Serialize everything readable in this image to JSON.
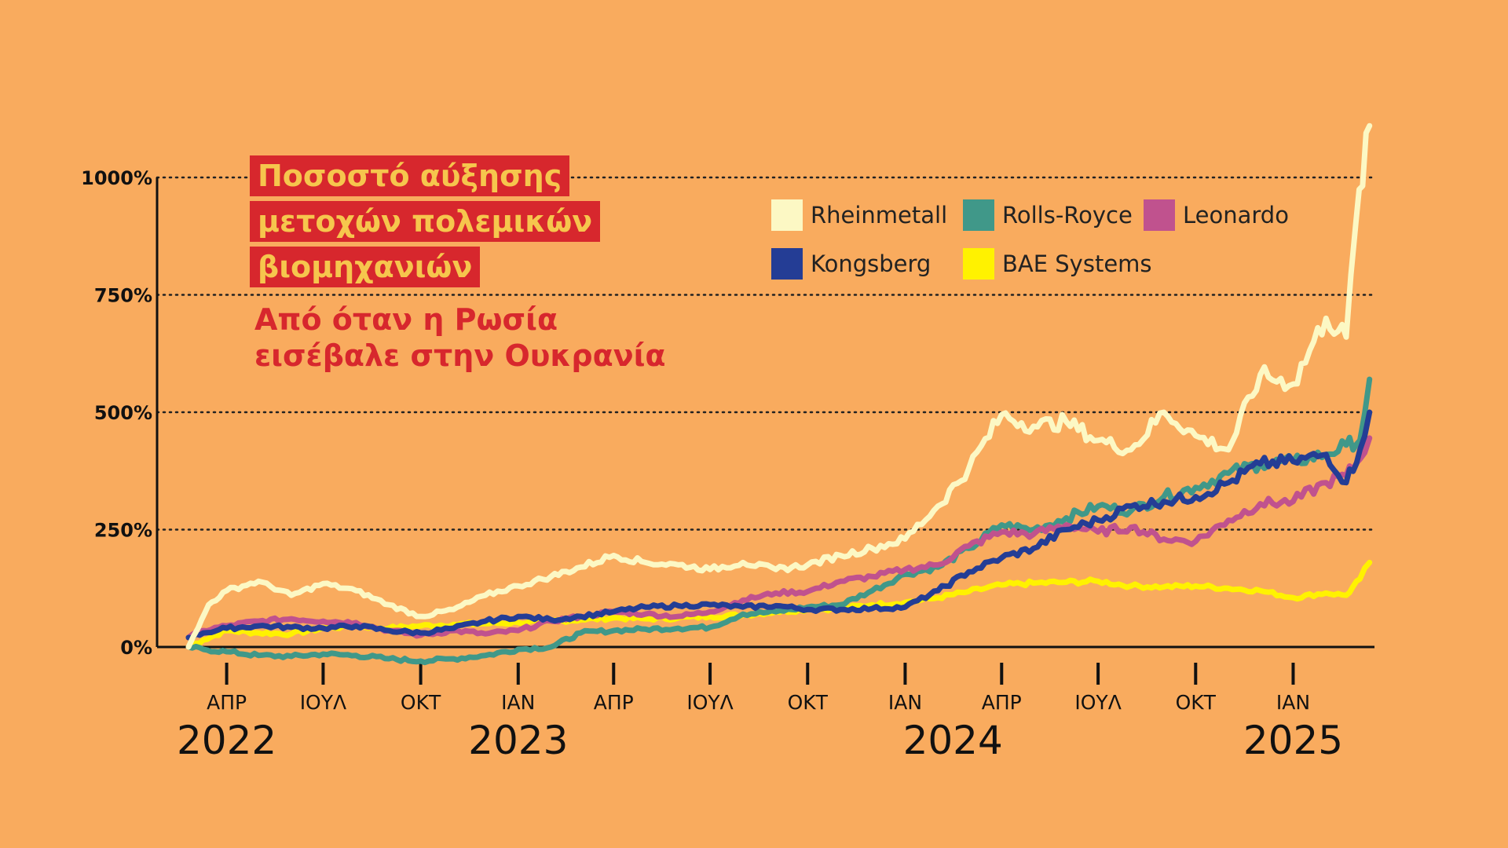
{
  "title": {
    "lines": [
      "Ποσοστό αύξησης",
      "μετοχών πολεμικών",
      "βιομηχανιών"
    ],
    "subtitle_lines": [
      "Από όταν η Ρωσία",
      "εισέβαλε στην Ουκρανία"
    ]
  },
  "colors": {
    "background": "#F9AB5E",
    "title_bg": "#D7272D",
    "title_text": "#F6C64D",
    "subtitle_text": "#D7272D"
  },
  "chart_data": {
    "type": "line",
    "x_unit": "date",
    "ylim": [
      0,
      1000
    ],
    "xlim": [
      "2022-02-24",
      "2025-03-15"
    ],
    "grid": "horizontal dotted",
    "legend_position": "top-right",
    "y_ticks": [
      {
        "value": 0,
        "label": "0%"
      },
      {
        "value": 250,
        "label": "250%"
      },
      {
        "value": 500,
        "label": "500%"
      },
      {
        "value": 750,
        "label": "750%"
      },
      {
        "value": 1000,
        "label": "1000%"
      }
    ],
    "x_ticks": [
      {
        "date": "2022-04-01",
        "label": "ΑΠΡ"
      },
      {
        "date": "2022-07-01",
        "label": "ΙΟΥΛ"
      },
      {
        "date": "2022-10-01",
        "label": "ΟΚΤ"
      },
      {
        "date": "2023-01-01",
        "label": "ΙΑΝ"
      },
      {
        "date": "2023-04-01",
        "label": "ΑΠΡ"
      },
      {
        "date": "2023-07-01",
        "label": "ΙΟΥΛ"
      },
      {
        "date": "2023-10-01",
        "label": "ΟΚΤ"
      },
      {
        "date": "2024-01-01",
        "label": "ΙΑΝ"
      },
      {
        "date": "2024-04-01",
        "label": "ΑΠΡ"
      },
      {
        "date": "2024-07-01",
        "label": "ΙΟΥΛ"
      },
      {
        "date": "2024-10-01",
        "label": "ΟΚΤ"
      },
      {
        "date": "2025-01-01",
        "label": "ΙΑΝ"
      }
    ],
    "year_labels": [
      {
        "date": "2022-04-01",
        "label": "2022"
      },
      {
        "date": "2023-01-01",
        "label": "2023"
      },
      {
        "date": "2024-02-15",
        "label": "2024"
      },
      {
        "date": "2025-01-01",
        "label": "2025"
      }
    ],
    "series": [
      {
        "name": "BAE Systems",
        "color": "#FFF200",
        "points": [
          [
            "2022-02-24",
            0
          ],
          [
            "2022-03-10",
            15
          ],
          [
            "2022-04-01",
            35
          ],
          [
            "2022-05-01",
            30
          ],
          [
            "2022-06-01",
            28
          ],
          [
            "2022-07-01",
            40
          ],
          [
            "2022-08-01",
            45
          ],
          [
            "2022-09-01",
            40
          ],
          [
            "2022-10-01",
            45
          ],
          [
            "2022-11-01",
            48
          ],
          [
            "2022-12-01",
            50
          ],
          [
            "2023-01-01",
            52
          ],
          [
            "2023-02-01",
            55
          ],
          [
            "2023-03-01",
            58
          ],
          [
            "2023-04-01",
            62
          ],
          [
            "2023-05-01",
            60
          ],
          [
            "2023-06-01",
            62
          ],
          [
            "2023-07-01",
            65
          ],
          [
            "2023-08-01",
            68
          ],
          [
            "2023-09-01",
            75
          ],
          [
            "2023-10-01",
            80
          ],
          [
            "2023-11-01",
            82
          ],
          [
            "2023-12-01",
            90
          ],
          [
            "2024-01-01",
            95
          ],
          [
            "2024-02-01",
            105
          ],
          [
            "2024-03-01",
            118
          ],
          [
            "2024-04-01",
            132
          ],
          [
            "2024-05-01",
            136
          ],
          [
            "2024-06-01",
            138
          ],
          [
            "2024-07-01",
            140
          ],
          [
            "2024-08-01",
            130
          ],
          [
            "2024-09-01",
            128
          ],
          [
            "2024-10-01",
            130
          ],
          [
            "2024-11-01",
            125
          ],
          [
            "2024-12-01",
            120
          ],
          [
            "2025-01-01",
            105
          ],
          [
            "2025-02-01",
            115
          ],
          [
            "2025-02-20",
            110
          ],
          [
            "2025-03-05",
            145
          ],
          [
            "2025-03-14",
            180
          ]
        ]
      },
      {
        "name": "Rolls-Royce",
        "color": "#409889",
        "points": [
          [
            "2022-02-24",
            0
          ],
          [
            "2022-03-10",
            -5
          ],
          [
            "2022-04-01",
            -10
          ],
          [
            "2022-05-01",
            -18
          ],
          [
            "2022-06-01",
            -20
          ],
          [
            "2022-07-01",
            -15
          ],
          [
            "2022-08-01",
            -18
          ],
          [
            "2022-09-01",
            -25
          ],
          [
            "2022-10-01",
            -30
          ],
          [
            "2022-11-01",
            -25
          ],
          [
            "2022-12-01",
            -18
          ],
          [
            "2023-01-01",
            -5
          ],
          [
            "2023-02-01",
            0
          ],
          [
            "2023-03-01",
            30
          ],
          [
            "2023-04-01",
            35
          ],
          [
            "2023-05-01",
            38
          ],
          [
            "2023-06-01",
            40
          ],
          [
            "2023-07-01",
            42
          ],
          [
            "2023-08-01",
            70
          ],
          [
            "2023-09-01",
            75
          ],
          [
            "2023-10-01",
            85
          ],
          [
            "2023-11-01",
            90
          ],
          [
            "2023-12-01",
            120
          ],
          [
            "2024-01-01",
            155
          ],
          [
            "2024-02-01",
            170
          ],
          [
            "2024-03-01",
            210
          ],
          [
            "2024-04-01",
            260
          ],
          [
            "2024-05-01",
            250
          ],
          [
            "2024-06-01",
            275
          ],
          [
            "2024-07-01",
            300
          ],
          [
            "2024-08-01",
            290
          ],
          [
            "2024-09-01",
            320
          ],
          [
            "2024-10-01",
            340
          ],
          [
            "2024-11-01",
            370
          ],
          [
            "2024-12-01",
            390
          ],
          [
            "2025-01-01",
            395
          ],
          [
            "2025-02-01",
            410
          ],
          [
            "2025-02-20",
            430
          ],
          [
            "2025-03-05",
            440
          ],
          [
            "2025-03-14",
            570
          ]
        ]
      },
      {
        "name": "Leonardo",
        "color": "#C0528E",
        "points": [
          [
            "2022-02-24",
            20
          ],
          [
            "2022-03-10",
            35
          ],
          [
            "2022-04-01",
            45
          ],
          [
            "2022-05-01",
            55
          ],
          [
            "2022-06-01",
            60
          ],
          [
            "2022-07-01",
            55
          ],
          [
            "2022-08-01",
            52
          ],
          [
            "2022-09-01",
            35
          ],
          [
            "2022-10-01",
            25
          ],
          [
            "2022-11-01",
            35
          ],
          [
            "2022-12-01",
            28
          ],
          [
            "2023-01-01",
            35
          ],
          [
            "2023-02-01",
            55
          ],
          [
            "2023-03-01",
            65
          ],
          [
            "2023-04-01",
            75
          ],
          [
            "2023-05-01",
            70
          ],
          [
            "2023-06-01",
            65
          ],
          [
            "2023-07-01",
            75
          ],
          [
            "2023-08-01",
            100
          ],
          [
            "2023-09-01",
            115
          ],
          [
            "2023-10-01",
            118
          ],
          [
            "2023-11-01",
            140
          ],
          [
            "2023-12-01",
            150
          ],
          [
            "2024-01-01",
            165
          ],
          [
            "2024-02-01",
            175
          ],
          [
            "2024-03-01",
            215
          ],
          [
            "2024-04-01",
            245
          ],
          [
            "2024-05-01",
            240
          ],
          [
            "2024-06-01",
            260
          ],
          [
            "2024-07-01",
            245
          ],
          [
            "2024-08-01",
            255
          ],
          [
            "2024-09-01",
            230
          ],
          [
            "2024-10-01",
            225
          ],
          [
            "2024-11-01",
            270
          ],
          [
            "2024-12-01",
            305
          ],
          [
            "2025-01-01",
            310
          ],
          [
            "2025-02-01",
            350
          ],
          [
            "2025-02-20",
            365
          ],
          [
            "2025-03-05",
            400
          ],
          [
            "2025-03-14",
            445
          ]
        ]
      },
      {
        "name": "Kongsberg",
        "color": "#243D95",
        "points": [
          [
            "2022-02-24",
            20
          ],
          [
            "2022-03-10",
            30
          ],
          [
            "2022-04-01",
            40
          ],
          [
            "2022-05-01",
            45
          ],
          [
            "2022-06-01",
            42
          ],
          [
            "2022-07-01",
            40
          ],
          [
            "2022-08-01",
            45
          ],
          [
            "2022-09-01",
            35
          ],
          [
            "2022-10-01",
            30
          ],
          [
            "2022-11-01",
            40
          ],
          [
            "2022-12-01",
            55
          ],
          [
            "2023-01-01",
            65
          ],
          [
            "2023-02-01",
            58
          ],
          [
            "2023-03-01",
            65
          ],
          [
            "2023-04-01",
            75
          ],
          [
            "2023-05-01",
            85
          ],
          [
            "2023-06-01",
            88
          ],
          [
            "2023-07-01",
            90
          ],
          [
            "2023-08-01",
            85
          ],
          [
            "2023-09-01",
            88
          ],
          [
            "2023-10-01",
            80
          ],
          [
            "2023-11-01",
            80
          ],
          [
            "2023-12-01",
            82
          ],
          [
            "2024-01-01",
            85
          ],
          [
            "2024-02-01",
            120
          ],
          [
            "2024-03-01",
            160
          ],
          [
            "2024-04-01",
            190
          ],
          [
            "2024-05-01",
            210
          ],
          [
            "2024-06-01",
            250
          ],
          [
            "2024-07-01",
            270
          ],
          [
            "2024-08-01",
            300
          ],
          [
            "2024-09-01",
            310
          ],
          [
            "2024-10-01",
            320
          ],
          [
            "2024-11-01",
            350
          ],
          [
            "2024-12-01",
            390
          ],
          [
            "2025-01-01",
            395
          ],
          [
            "2025-02-01",
            410
          ],
          [
            "2025-02-20",
            350
          ],
          [
            "2025-03-05",
            420
          ],
          [
            "2025-03-14",
            500
          ]
        ]
      },
      {
        "name": "Rheinmetall",
        "color": "#FCF8C4",
        "points": [
          [
            "2022-02-24",
            0
          ],
          [
            "2022-03-05",
            40
          ],
          [
            "2022-03-15",
            90
          ],
          [
            "2022-04-01",
            120
          ],
          [
            "2022-05-01",
            140
          ],
          [
            "2022-06-01",
            110
          ],
          [
            "2022-07-01",
            135
          ],
          [
            "2022-08-01",
            120
          ],
          [
            "2022-09-01",
            90
          ],
          [
            "2022-10-01",
            65
          ],
          [
            "2022-11-01",
            80
          ],
          [
            "2022-12-01",
            110
          ],
          [
            "2023-01-01",
            130
          ],
          [
            "2023-02-01",
            150
          ],
          [
            "2023-03-01",
            170
          ],
          [
            "2023-04-01",
            195
          ],
          [
            "2023-05-01",
            180
          ],
          [
            "2023-06-01",
            175
          ],
          [
            "2023-07-01",
            165
          ],
          [
            "2023-08-01",
            180
          ],
          [
            "2023-09-01",
            165
          ],
          [
            "2023-10-01",
            175
          ],
          [
            "2023-11-01",
            195
          ],
          [
            "2023-12-01",
            210
          ],
          [
            "2024-01-01",
            230
          ],
          [
            "2024-02-01",
            300
          ],
          [
            "2024-03-01",
            380
          ],
          [
            "2024-04-01",
            495
          ],
          [
            "2024-05-01",
            470
          ],
          [
            "2024-06-01",
            480
          ],
          [
            "2024-07-01",
            440
          ],
          [
            "2024-08-01",
            420
          ],
          [
            "2024-09-01",
            500
          ],
          [
            "2024-10-01",
            450
          ],
          [
            "2024-11-01",
            420
          ],
          [
            "2024-12-01",
            580
          ],
          [
            "2025-01-01",
            560
          ],
          [
            "2025-02-01",
            700
          ],
          [
            "2025-02-20",
            660
          ],
          [
            "2025-03-01",
            900
          ],
          [
            "2025-03-14",
            1110
          ]
        ]
      }
    ]
  },
  "legend": {
    "row1": [
      {
        "name": "Rheinmetall",
        "color": "#FCF8C4"
      },
      {
        "name": "Rolls-Royce",
        "color": "#409889"
      },
      {
        "name": "Leonardo",
        "color": "#C0528E"
      }
    ],
    "row2": [
      {
        "name": "Kongsberg",
        "color": "#243D95"
      },
      {
        "name": "BAE Systems",
        "color": "#FFF200"
      }
    ]
  }
}
